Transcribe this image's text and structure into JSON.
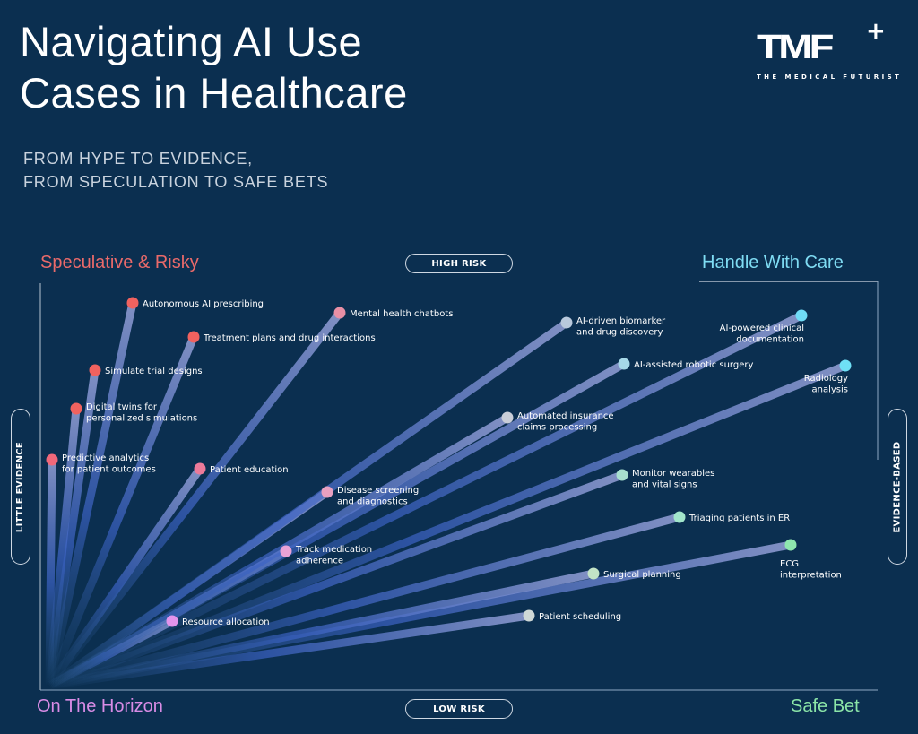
{
  "header": {
    "title_line1": "Navigating AI Use",
    "title_line2": "Cases in Healthcare",
    "subtitle_line1": "FROM HYPE TO EVIDENCE,",
    "subtitle_line2": "FROM SPECULATION TO SAFE BETS"
  },
  "logo": {
    "mark": "TMF",
    "plus": "+",
    "name": "THE MEDICAL FUTURIST"
  },
  "quadrants": {
    "top_left": "Speculative & Risky",
    "top_right": "Handle With Care",
    "bottom_left": "On The Horizon",
    "bottom_right": "Safe Bet"
  },
  "axes": {
    "top": "HIGH RISK",
    "bottom": "LOW RISK",
    "left": "LITTLE EVIDENCE",
    "right": "EVIDENCE-BASED"
  },
  "colors": {
    "background": "#0b2f50",
    "speculative": "#ea6a6a",
    "care": "#7fdcf3",
    "horizon": "#d98ce6",
    "safe": "#8be5a8"
  },
  "use_cases": [
    {
      "lines": [
        "Autonomous AI prescribing"
      ],
      "color": "#f0625f"
    },
    {
      "lines": [
        "Treatment plans and drug interactions"
      ],
      "color": "#f0625f"
    },
    {
      "lines": [
        "Simulate trial designs"
      ],
      "color": "#f0625f"
    },
    {
      "lines": [
        "Digital twins for",
        "personalized simulations"
      ],
      "color": "#f0625f"
    },
    {
      "lines": [
        "Predictive analytics",
        "for patient outcomes"
      ],
      "color": "#f0687a"
    },
    {
      "lines": [
        "Patient education"
      ],
      "color": "#ec7a9a"
    },
    {
      "lines": [
        "Mental health chatbots"
      ],
      "color": "#e88fa5"
    },
    {
      "lines": [
        "Disease screening",
        "and diagnostics"
      ],
      "color": "#e8a0c0"
    },
    {
      "lines": [
        "Track medication",
        "adherence"
      ],
      "color": "#eaa2d6"
    },
    {
      "lines": [
        "Resource allocation"
      ],
      "color": "#e394ec"
    },
    {
      "lines": [
        "AI-driven biomarker",
        "and drug discovery"
      ],
      "color": "#b9c9dc"
    },
    {
      "lines": [
        "AI-powered clinical",
        "documentation"
      ],
      "color": "#6fdcf6"
    },
    {
      "lines": [
        "AI-assisted robotic surgery"
      ],
      "color": "#a6d8e8"
    },
    {
      "lines": [
        "Radiology",
        "analysis"
      ],
      "color": "#6fe0f6"
    },
    {
      "lines": [
        "Automated insurance",
        "claims processing"
      ],
      "color": "#c9ced8"
    },
    {
      "lines": [
        "Monitor wearables",
        "and vital signs"
      ],
      "color": "#a7e0cf"
    },
    {
      "lines": [
        "Triaging patients in ER"
      ],
      "color": "#a2e6cb"
    },
    {
      "lines": [
        "ECG",
        "interpretation"
      ],
      "color": "#8ee7ae"
    },
    {
      "lines": [
        "Surgical planning"
      ],
      "color": "#c2e3c6"
    },
    {
      "lines": [
        "Patient scheduling"
      ],
      "color": "#cfd8d6"
    }
  ]
}
